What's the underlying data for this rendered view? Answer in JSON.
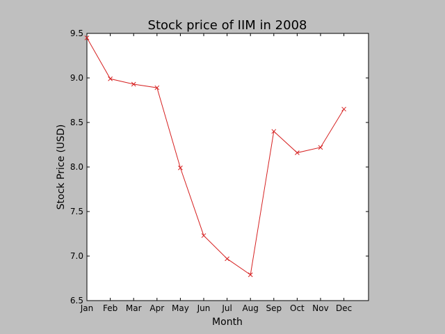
{
  "chart_data": {
    "type": "line",
    "title": "Stock price of IIM in 2008",
    "xlabel": "Month",
    "ylabel": "Stock Price (USD)",
    "categories": [
      "Jan",
      "Feb",
      "Mar",
      "Apr",
      "May",
      "Jun",
      "Jul",
      "Aug",
      "Sep",
      "Oct",
      "Nov",
      "Dec"
    ],
    "series": [
      {
        "values": [
          9.45,
          8.99,
          8.93,
          8.89,
          7.99,
          7.23,
          6.97,
          6.79,
          8.4,
          8.16,
          8.22,
          8.65
        ],
        "color": "#d62020",
        "marker": "x"
      }
    ],
    "ylim": [
      6.5,
      9.5
    ],
    "yticks": [
      6.5,
      7.0,
      7.5,
      8.0,
      8.5,
      9.0,
      9.5
    ],
    "ytick_labels": [
      "6.5",
      "7.0",
      "7.5",
      "8.0",
      "8.5",
      "9.0",
      "9.5"
    ],
    "grid": false,
    "legend": false
  },
  "colors": {
    "figure_background": "#bfbfbf",
    "plot_background": "#ffffff",
    "line": "#d62020",
    "axes": "#000000"
  }
}
